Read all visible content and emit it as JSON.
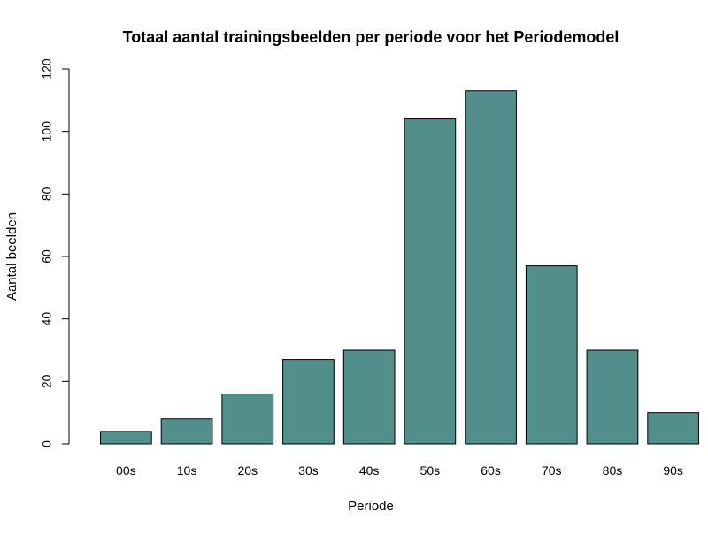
{
  "chart_data": {
    "type": "bar",
    "title": "Totaal aantal trainingsbeelden per periode voor het Periodemodel",
    "xlabel": "Periode",
    "ylabel": "Aantal beelden",
    "categories": [
      "00s",
      "10s",
      "20s",
      "30s",
      "40s",
      "50s",
      "60s",
      "70s",
      "80s",
      "90s"
    ],
    "values": [
      4,
      8,
      16,
      27,
      30,
      104,
      113,
      57,
      30,
      10
    ],
    "ylim": [
      0,
      120
    ],
    "yticks": [
      0,
      20,
      40,
      60,
      80,
      100,
      120
    ],
    "grid": false,
    "legend": "none",
    "bar_color": "#528e8c",
    "bar_edge_color": "#000000"
  }
}
